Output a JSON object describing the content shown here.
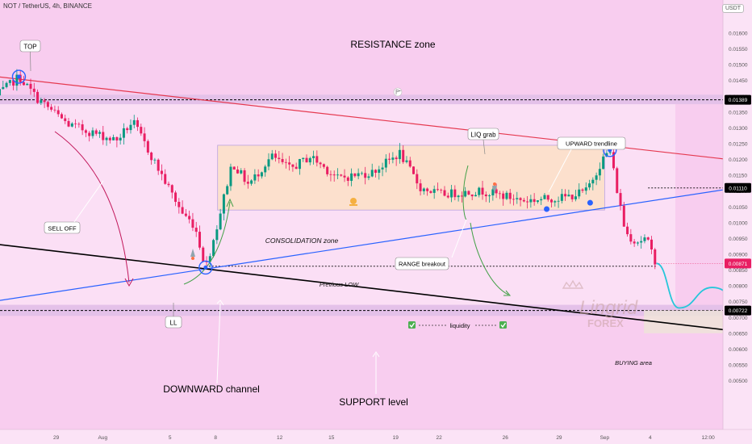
{
  "header": {
    "title": "NOT / TetherUS, 4h, BINANCE",
    "currency": "USDT"
  },
  "colors": {
    "background": "#f8cdef",
    "up": "#089981",
    "down": "#e91e63",
    "resistance": "#e53950",
    "trend": "#2962ff",
    "channel": "#000000",
    "zone": "#e1bee7",
    "consolidation": "#fde1c9",
    "projection": "#26c6da",
    "price_tag": "#e91e63",
    "level_tag": "#000000"
  },
  "annotations": {
    "resistance_zone": "RESISTANCE zone",
    "support_level": "SUPPORT level",
    "downward_channel": "DOWNWARD channel",
    "consolidation_zone": "CONSOLIDATION zone",
    "top": "TOP",
    "ll": "LL",
    "liq_grab": "LIQ grab",
    "sell_off": "SELL OFF",
    "upward_trendline": "UPWARD trendline",
    "range_breakout": "RANGE breakout",
    "previous_low": "Previous LOW",
    "liquidity": "liquidity",
    "buying_area": "BUYING area"
  },
  "watermark": {
    "brand": "Lingrid",
    "sub": "FOREX"
  },
  "chart_data": {
    "type": "candlestick",
    "title": "NOT / TetherUS, 4h, BINANCE",
    "xlabel": "",
    "ylabel": "USDT",
    "ylim": [
      0.0048,
      0.0168
    ],
    "yticks": [
      "0.01600",
      "0.01550",
      "0.01500",
      "0.01450",
      "0.01400",
      "0.01350",
      "0.01300",
      "0.01250",
      "0.01200",
      "0.01150",
      "0.01100",
      "0.01050",
      "0.01000",
      "0.00950",
      "0.00900",
      "0.00850",
      "0.00800",
      "0.00750",
      "0.00700",
      "0.00650",
      "0.00600",
      "0.00550",
      "0.00500"
    ],
    "xticks": [
      "29",
      "Aug",
      "5",
      "8",
      "12",
      "15",
      "19",
      "22",
      "26",
      "29",
      "Sep",
      "4",
      "12:00"
    ],
    "price_tags": {
      "resistance": "0.01389",
      "current": "0.00871",
      "range_level": "0.01110",
      "support": "0.00722"
    },
    "anchors": [
      {
        "day": -5,
        "price": 0.014
      },
      {
        "day": -3.9,
        "price": 0.01462
      },
      {
        "day": -3.0,
        "price": 0.01392
      },
      {
        "day": -1.5,
        "price": 0.0131
      },
      {
        "day": 0.8,
        "price": 0.0126
      },
      {
        "day": 1.6,
        "price": 0.0132
      },
      {
        "day": 3.0,
        "price": 0.0115
      },
      {
        "day": 4.0,
        "price": 0.0103
      },
      {
        "day": 4.6,
        "price": 0.0099
      },
      {
        "day": 5.12,
        "price": 0.00858
      },
      {
        "day": 5.6,
        "price": 0.0097
      },
      {
        "day": 6.4,
        "price": 0.0119
      },
      {
        "day": 7.2,
        "price": 0.0112
      },
      {
        "day": 8.3,
        "price": 0.0121
      },
      {
        "day": 9.2,
        "price": 0.0117
      },
      {
        "day": 10.2,
        "price": 0.0121
      },
      {
        "day": 11.5,
        "price": 0.0114
      },
      {
        "day": 13.2,
        "price": 0.0116
      },
      {
        "day": 14.5,
        "price": 0.0122
      },
      {
        "day": 15.5,
        "price": 0.0111
      },
      {
        "day": 16.5,
        "price": 0.0109
      },
      {
        "day": 18.5,
        "price": 0.011
      },
      {
        "day": 20.5,
        "price": 0.0107
      },
      {
        "day": 22.5,
        "price": 0.0108
      },
      {
        "day": 23.5,
        "price": 0.011
      },
      {
        "day": 24.3,
        "price": 0.012
      },
      {
        "day": 24.65,
        "price": 0.0123
      },
      {
        "day": 24.95,
        "price": 0.0112
      },
      {
        "day": 25.4,
        "price": 0.0097
      },
      {
        "day": 25.9,
        "price": 0.0094
      },
      {
        "day": 26.4,
        "price": 0.0095
      },
      {
        "day": 26.9,
        "price": 0.00871
      }
    ],
    "levels": {
      "resistance_zone": [
        0.01375,
        0.01405
      ],
      "support_zone": [
        0.00705,
        0.0074
      ],
      "range_top": 0.0111,
      "previous_low": 0.00862
    },
    "consolidation": {
      "day_from": 5.7,
      "day_to": 24.4,
      "low": 0.0104,
      "high": 0.01245
    },
    "buying_area": {
      "day_from": 26.3,
      "day_to": 38.5,
      "low": 0.0065,
      "high": 0.00722
    },
    "trendlines": [
      {
        "name": "resistance",
        "from": {
          "day": -6.7,
          "price": 0.01475
        },
        "to": {
          "day": 38.5,
          "price": 0.0114
        }
      },
      {
        "name": "upward",
        "from": {
          "day": -6.7,
          "price": 0.00735
        },
        "to": {
          "day": 46.2,
          "price": 0.01265
        }
      },
      {
        "name": "downward_channel",
        "from": {
          "day": -6.7,
          "price": 0.00945
        },
        "to": {
          "day": 38.5,
          "price": 0.00597
        }
      }
    ],
    "projection": [
      {
        "day": 26.9,
        "price": 0.00871
      },
      {
        "day": 28.0,
        "price": 0.0073
      },
      {
        "day": 29.6,
        "price": 0.00795
      },
      {
        "day": 31.0,
        "price": 0.0076
      },
      {
        "day": 32.4,
        "price": 0.0095
      },
      {
        "day": 33.2,
        "price": 0.0111
      }
    ]
  }
}
